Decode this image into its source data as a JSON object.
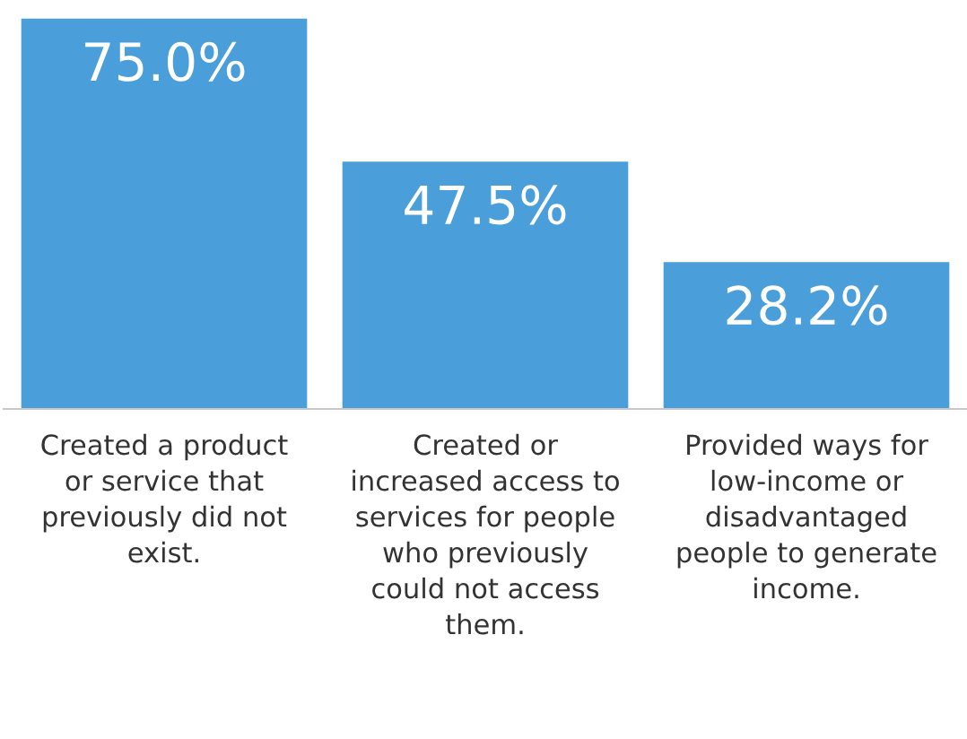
{
  "chart_data": {
    "type": "bar",
    "categories": [
      "Created a product\nor service that\npreviously did not\nexist.",
      "Created or\nincreased access to\nservices for people\nwho previously\ncould not access\nthem.",
      "Provided ways for\nlow-income or\ndisadvantaged\npeople to generate\nincome."
    ],
    "values": [
      75.0,
      47.5,
      28.2
    ],
    "value_labels": [
      "75.0%",
      "47.5%",
      "28.2%"
    ],
    "color": "#4a9fdb",
    "grid": false,
    "legend": false
  }
}
